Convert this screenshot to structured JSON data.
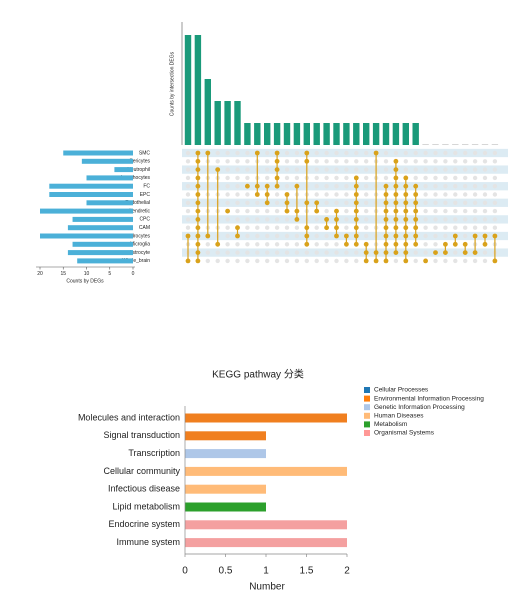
{
  "chart_data": [
    {
      "type": "upset",
      "ylabel": "Counts by intersection DEGs",
      "xlabel": "Counts by DEGs",
      "sets": [
        "SMC",
        "Pericytes",
        "Neutrophil",
        "Lymphocytes",
        "FC",
        "EPC",
        "Endothelial",
        "Dendretic",
        "CPC",
        "CAM",
        "Oligodendrocytes",
        "Microglia",
        "Astrocyte",
        "Whole_brain"
      ],
      "set_sizes": [
        15,
        11,
        4,
        10,
        18,
        18,
        10,
        20,
        13,
        14,
        20,
        13,
        14,
        12
      ],
      "set_color": "#4bb0d8",
      "xlim": [
        0,
        20
      ],
      "xticks": [
        20,
        15,
        10,
        5,
        0
      ],
      "ylim": [
        0,
        5
      ],
      "bar_color": "#1a9a7a",
      "dot_color": "#d9a21b",
      "intersections": [
        {
          "sets": [
            10,
            13
          ],
          "count": 5
        },
        {
          "sets": [
            0,
            1,
            2,
            3,
            4,
            5,
            6,
            7,
            8,
            9,
            10,
            11,
            12,
            13
          ],
          "count": 5
        },
        {
          "sets": [
            0,
            10
          ],
          "count": 3
        },
        {
          "sets": [
            2,
            11
          ],
          "count": 2
        },
        {
          "sets": [
            7
          ],
          "count": 2
        },
        {
          "sets": [
            9,
            10
          ],
          "count": 2
        },
        {
          "sets": [
            4
          ],
          "count": 1
        },
        {
          "sets": [
            0,
            4,
            5
          ],
          "count": 1
        },
        {
          "sets": [
            4,
            5,
            6
          ],
          "count": 1
        },
        {
          "sets": [
            0,
            1,
            2,
            3,
            4
          ],
          "count": 1
        },
        {
          "sets": [
            5,
            6,
            7
          ],
          "count": 1
        },
        {
          "sets": [
            4,
            7,
            8
          ],
          "count": 1
        },
        {
          "sets": [
            0,
            1,
            6,
            9,
            10,
            11
          ],
          "count": 1
        },
        {
          "sets": [
            6,
            7
          ],
          "count": 1
        },
        {
          "sets": [
            8,
            9
          ],
          "count": 1
        },
        {
          "sets": [
            7,
            8,
            9,
            10
          ],
          "count": 1
        },
        {
          "sets": [
            10,
            11
          ],
          "count": 1
        },
        {
          "sets": [
            3,
            4,
            5,
            6,
            7,
            8,
            9,
            10,
            11
          ],
          "count": 1
        },
        {
          "sets": [
            11,
            12,
            13
          ],
          "count": 1
        },
        {
          "sets": [
            0,
            12,
            13
          ],
          "count": 1
        },
        {
          "sets": [
            4,
            5,
            6,
            7,
            8,
            9,
            10,
            11,
            12,
            13
          ],
          "count": 1
        },
        {
          "sets": [
            1,
            2,
            3,
            4,
            5,
            6,
            7,
            8,
            9,
            10,
            11,
            12
          ],
          "count": 1
        },
        {
          "sets": [
            3,
            4,
            5,
            6,
            7,
            8,
            9,
            10,
            11,
            12,
            13
          ],
          "count": 1
        },
        {
          "sets": [
            4,
            5,
            6,
            7,
            8,
            9,
            10,
            11
          ],
          "count": 1
        },
        {
          "sets": [
            13
          ],
          "count": 0
        },
        {
          "sets": [
            12
          ],
          "count": 0
        },
        {
          "sets": [
            11,
            12
          ],
          "count": 0
        },
        {
          "sets": [
            10,
            11
          ],
          "count": 0
        },
        {
          "sets": [
            11,
            12
          ],
          "count": 0
        },
        {
          "sets": [
            10,
            12
          ],
          "count": 0
        },
        {
          "sets": [
            10,
            11
          ],
          "count": 0
        },
        {
          "sets": [
            10,
            13
          ],
          "count": 0
        }
      ]
    },
    {
      "type": "hbar",
      "title": "KEGG pathway 分类",
      "xlabel": "Number",
      "categories": [
        "Molecules and interaction",
        "Signal transduction",
        "Transcription",
        "Cellular community",
        "Infectious disease",
        "Lipid metabolism",
        "Endocrine system",
        "Immune system"
      ],
      "values": [
        2,
        1,
        1,
        2,
        1,
        1,
        2,
        2
      ],
      "colors": [
        "#f07f1f",
        "#f07f1f",
        "#aec7e8",
        "#ffbb78",
        "#ffbb78",
        "#2ca02c",
        "#f4a0a0",
        "#f4a0a0"
      ],
      "xlim": [
        0,
        2
      ],
      "xticks": [
        0,
        0.5,
        1,
        1.5,
        2
      ],
      "legend": [
        {
          "name": "Cellular Processes",
          "color": "#1f77b4"
        },
        {
          "name": "Environmental Information Processing",
          "color": "#ff7f0e"
        },
        {
          "name": "Genetic Information Processing",
          "color": "#aec7e8"
        },
        {
          "name": "Human Diseases",
          "color": "#ffbb78"
        },
        {
          "name": "Metabolism",
          "color": "#2ca02c"
        },
        {
          "name": "Organismal Systems",
          "color": "#ff9896"
        }
      ]
    }
  ]
}
